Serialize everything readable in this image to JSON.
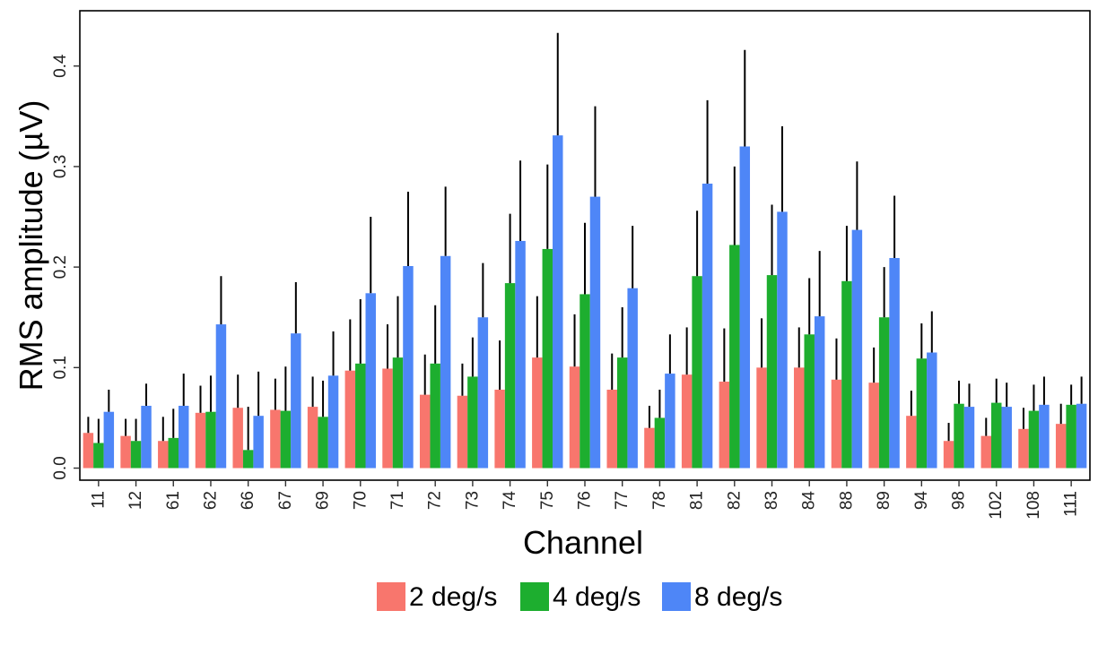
{
  "chart_data": {
    "type": "bar",
    "xlabel": "Channel",
    "ylabel": "RMS amplitude (µV)",
    "ylim": [
      -0.012,
      0.455
    ],
    "yticks": [
      0.0,
      0.1,
      0.2,
      0.3,
      0.4
    ],
    "ytick_labels": [
      "0.0",
      "0.1",
      "0.2",
      "0.3",
      "0.4"
    ],
    "grid": false,
    "legend_position": "bottom",
    "categories": [
      "11",
      "12",
      "61",
      "62",
      "66",
      "67",
      "69",
      "70",
      "71",
      "72",
      "73",
      "74",
      "75",
      "76",
      "77",
      "78",
      "81",
      "82",
      "83",
      "84",
      "88",
      "89",
      "94",
      "98",
      "102",
      "108",
      "111"
    ],
    "series": [
      {
        "name": "2 deg/s",
        "color": "#F8766D",
        "values": [
          0.035,
          0.032,
          0.027,
          0.055,
          0.06,
          0.058,
          0.061,
          0.097,
          0.099,
          0.073,
          0.072,
          0.078,
          0.11,
          0.101,
          0.078,
          0.04,
          0.093,
          0.086,
          0.1,
          0.1,
          0.088,
          0.085,
          0.052,
          0.027,
          0.032,
          0.039,
          0.044
        ],
        "error_upper": [
          0.051,
          0.049,
          0.051,
          0.082,
          0.093,
          0.089,
          0.091,
          0.148,
          0.143,
          0.113,
          0.104,
          0.127,
          0.171,
          0.153,
          0.114,
          0.062,
          0.14,
          0.139,
          0.149,
          0.14,
          0.129,
          0.12,
          0.077,
          0.045,
          0.05,
          0.06,
          0.064
        ]
      },
      {
        "name": "4 deg/s",
        "color": "#1DAE2F",
        "values": [
          0.025,
          0.027,
          0.03,
          0.056,
          0.018,
          0.057,
          0.051,
          0.104,
          0.11,
          0.104,
          0.091,
          0.184,
          0.218,
          0.173,
          0.11,
          0.05,
          0.191,
          0.222,
          0.192,
          0.133,
          0.186,
          0.15,
          0.109,
          0.064,
          0.065,
          0.057,
          0.063
        ],
        "error_upper": [
          0.049,
          0.049,
          0.059,
          0.092,
          0.061,
          0.101,
          0.087,
          0.168,
          0.171,
          0.162,
          0.13,
          0.253,
          0.302,
          0.244,
          0.16,
          0.078,
          0.256,
          0.3,
          0.262,
          0.189,
          0.241,
          0.2,
          0.144,
          0.087,
          0.089,
          0.083,
          0.083
        ]
      },
      {
        "name": "8 deg/s",
        "color": "#4E86F7",
        "values": [
          0.056,
          0.062,
          0.062,
          0.143,
          0.052,
          0.134,
          0.092,
          0.174,
          0.201,
          0.211,
          0.15,
          0.226,
          0.331,
          0.27,
          0.179,
          0.094,
          0.283,
          0.32,
          0.255,
          0.151,
          0.237,
          0.209,
          0.115,
          0.061,
          0.061,
          0.063,
          0.064
        ],
        "error_upper": [
          0.078,
          0.084,
          0.094,
          0.191,
          0.096,
          0.185,
          0.136,
          0.25,
          0.275,
          0.28,
          0.204,
          0.306,
          0.433,
          0.36,
          0.241,
          0.133,
          0.366,
          0.416,
          0.34,
          0.216,
          0.305,
          0.271,
          0.156,
          0.084,
          0.085,
          0.091,
          0.091
        ]
      }
    ]
  }
}
